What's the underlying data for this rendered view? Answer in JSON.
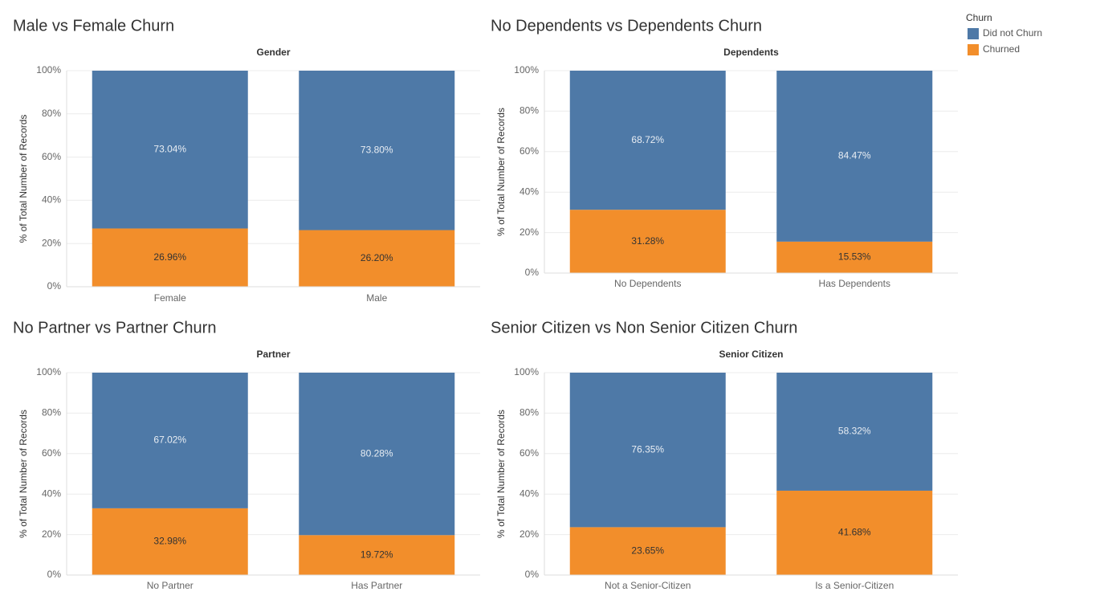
{
  "legend": {
    "title": "Churn"
  },
  "chart_data": [
    {
      "type": "bar",
      "stacked": true,
      "title": "Male vs Female Churn",
      "header": "Gender",
      "ylabel": "% of Total Number of Records",
      "categories": [
        "Female",
        "Male"
      ],
      "series": [
        {
          "name": "Churned",
          "color": "#f28e2b",
          "values": [
            26.96,
            26.2
          ],
          "value_labels": [
            "26.96%",
            "26.20%"
          ]
        },
        {
          "name": "Did not Churn",
          "color": "#4e79a7",
          "values": [
            73.04,
            73.8
          ],
          "value_labels": [
            "73.04%",
            "73.80%"
          ]
        }
      ],
      "ylim": [
        0,
        100
      ],
      "yticks": [
        {
          "value": 0,
          "label": "0%"
        },
        {
          "value": 20,
          "label": "20%"
        },
        {
          "value": 40,
          "label": "40%"
        },
        {
          "value": 60,
          "label": "60%"
        },
        {
          "value": 80,
          "label": "80%"
        },
        {
          "value": 100,
          "label": "100%"
        }
      ],
      "grid": true
    },
    {
      "type": "bar",
      "stacked": true,
      "title": "No Dependents vs Dependents Churn",
      "header": "Dependents",
      "ylabel": "% of Total Number of Records",
      "categories": [
        "No Dependents",
        "Has Dependents"
      ],
      "series": [
        {
          "name": "Churned",
          "color": "#f28e2b",
          "values": [
            31.28,
            15.53
          ],
          "value_labels": [
            "31.28%",
            "15.53%"
          ]
        },
        {
          "name": "Did not Churn",
          "color": "#4e79a7",
          "values": [
            68.72,
            84.47
          ],
          "value_labels": [
            "68.72%",
            "84.47%"
          ]
        }
      ],
      "ylim": [
        0,
        100
      ],
      "yticks": [
        {
          "value": 0,
          "label": "0%"
        },
        {
          "value": 20,
          "label": "20%"
        },
        {
          "value": 40,
          "label": "40%"
        },
        {
          "value": 60,
          "label": "60%"
        },
        {
          "value": 80,
          "label": "80%"
        },
        {
          "value": 100,
          "label": "100%"
        }
      ],
      "grid": true
    },
    {
      "type": "bar",
      "stacked": true,
      "title": "No Partner vs Partner Churn",
      "header": "Partner",
      "ylabel": "% of Total Number of Records",
      "categories": [
        "No Partner",
        "Has Partner"
      ],
      "series": [
        {
          "name": "Churned",
          "color": "#f28e2b",
          "values": [
            32.98,
            19.72
          ],
          "value_labels": [
            "32.98%",
            "19.72%"
          ]
        },
        {
          "name": "Did not Churn",
          "color": "#4e79a7",
          "values": [
            67.02,
            80.28
          ],
          "value_labels": [
            "67.02%",
            "80.28%"
          ]
        }
      ],
      "ylim": [
        0,
        100
      ],
      "yticks": [
        {
          "value": 0,
          "label": "0%"
        },
        {
          "value": 20,
          "label": "20%"
        },
        {
          "value": 40,
          "label": "40%"
        },
        {
          "value": 60,
          "label": "60%"
        },
        {
          "value": 80,
          "label": "80%"
        },
        {
          "value": 100,
          "label": "100%"
        }
      ],
      "grid": true
    },
    {
      "type": "bar",
      "stacked": true,
      "title": "Senior Citizen vs Non Senior Citizen Churn",
      "header": "Senior Citizen",
      "ylabel": "% of Total Number of Records",
      "categories": [
        "Not a Senior-Citizen",
        "Is a Senior-Citizen"
      ],
      "series": [
        {
          "name": "Churned",
          "color": "#f28e2b",
          "values": [
            23.65,
            41.68
          ],
          "value_labels": [
            "23.65%",
            "41.68%"
          ]
        },
        {
          "name": "Did not Churn",
          "color": "#4e79a7",
          "values": [
            76.35,
            58.32
          ],
          "value_labels": [
            "76.35%",
            "58.32%"
          ]
        }
      ],
      "ylim": [
        0,
        100
      ],
      "yticks": [
        {
          "value": 0,
          "label": "0%"
        },
        {
          "value": 20,
          "label": "20%"
        },
        {
          "value": 40,
          "label": "40%"
        },
        {
          "value": 60,
          "label": "60%"
        },
        {
          "value": 80,
          "label": "80%"
        },
        {
          "value": 100,
          "label": "100%"
        }
      ],
      "grid": true
    }
  ]
}
